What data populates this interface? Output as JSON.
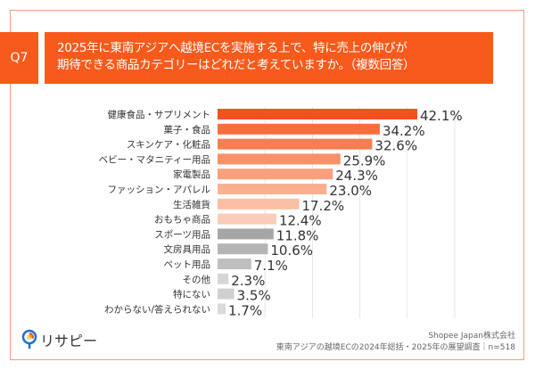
{
  "question": {
    "number": "Q7",
    "lines": [
      "2025年に東南アジアへ越境ECを実施する上で、特に売上の伸びが",
      "期待できる商品カテゴリーはどれだと考えていますか。（複数回答）"
    ]
  },
  "footer": {
    "company": "Shopee Japan株式会社",
    "source": "東南アジアの越境ECの2024年総括・2025年の展望調査｜n=518"
  },
  "logo": {
    "text": "リサピー"
  },
  "chart_data": {
    "type": "bar",
    "orientation": "horizontal",
    "categories": [
      "健康食品・サプリメント",
      "菓子・食品",
      "スキンケア・化粧品",
      "ベビー・マタニティー用品",
      "家電製品",
      "ファッション・アパレル",
      "生活雑貨",
      "おもちゃ商品",
      "スポーツ用品",
      "文房具用品",
      "ペット用品",
      "その他",
      "特にない",
      "わからない/答えられない"
    ],
    "values": [
      42.1,
      34.2,
      32.6,
      25.9,
      24.3,
      23.0,
      17.2,
      12.4,
      11.8,
      10.6,
      7.1,
      2.3,
      3.5,
      1.7
    ],
    "value_labels": [
      "42.1%",
      "34.2%",
      "32.6%",
      "25.9%",
      "24.3%",
      "23.0%",
      "17.2%",
      "12.4%",
      "11.8%",
      "10.6%",
      "7.1%",
      "2.3%",
      "3.5%",
      "1.7%"
    ],
    "colors": [
      "#f4511e",
      "#f76e3e",
      "#f77e52",
      "#f89068",
      "#f9a07f",
      "#fab090",
      "#fbbfa4",
      "#fcccb8",
      "#a6a6a6",
      "#b4b4b4",
      "#bfbfbf",
      "#d6d6d6",
      "#d0d0d0",
      "#dadada"
    ],
    "xlim": [
      0,
      60
    ],
    "grid": true
  }
}
